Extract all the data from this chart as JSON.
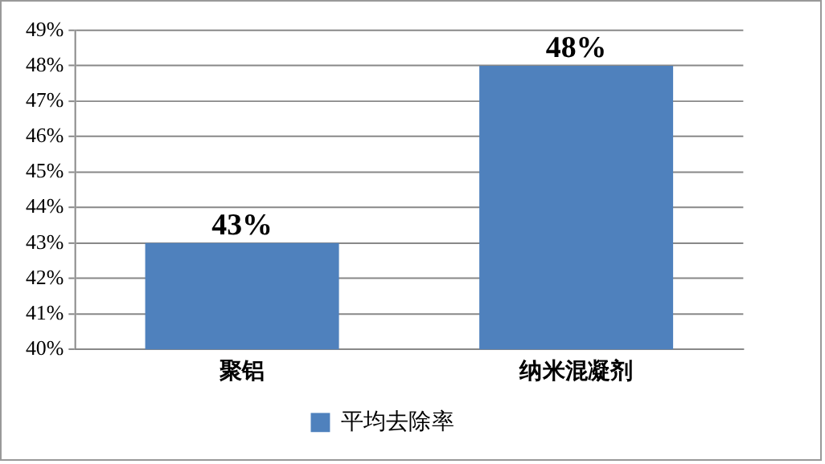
{
  "chart_data": {
    "type": "bar",
    "categories": [
      "聚铝",
      "纳米混凝剂"
    ],
    "series": [
      {
        "name": "平均去除率",
        "color": "#4f81bd",
        "values": [
          43,
          48
        ],
        "value_labels": [
          "43%",
          "48%"
        ]
      }
    ],
    "ylim": [
      40,
      49
    ],
    "yticks": [
      {
        "value": 40,
        "label": "40%"
      },
      {
        "value": 41,
        "label": "41%"
      },
      {
        "value": 42,
        "label": "42%"
      },
      {
        "value": 43,
        "label": "43%"
      },
      {
        "value": 44,
        "label": "44%"
      },
      {
        "value": 45,
        "label": "45%"
      },
      {
        "value": 46,
        "label": "46%"
      },
      {
        "value": 47,
        "label": "47%"
      },
      {
        "value": 48,
        "label": "48%"
      },
      {
        "value": 49,
        "label": "49%"
      }
    ],
    "grid": "y",
    "legend": "bottom"
  }
}
